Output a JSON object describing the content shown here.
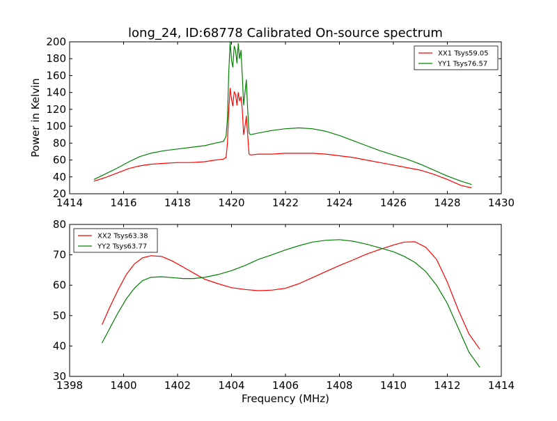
{
  "figure": {
    "title": "long_24, ID:68778 Calibrated On-source spectrum"
  },
  "chart_data": [
    {
      "type": "line",
      "title": "long_24, ID:68778 Calibrated On-source spectrum",
      "xlabel": "",
      "ylabel": "Power in Kelvin",
      "xlim": [
        1414,
        1430
      ],
      "ylim": [
        20,
        200
      ],
      "xticks": [
        1414,
        1416,
        1418,
        1420,
        1422,
        1424,
        1426,
        1428,
        1430
      ],
      "yticks": [
        20,
        40,
        60,
        80,
        100,
        120,
        140,
        160,
        180,
        200
      ],
      "grid": false,
      "legend_position": "top-right",
      "series": [
        {
          "name": "XX1 Tsys59.05",
          "color": "#ff0000",
          "x": [
            1414.9,
            1415.3,
            1415.8,
            1416.2,
            1416.6,
            1417.0,
            1417.5,
            1418.0,
            1418.5,
            1419.0,
            1419.4,
            1419.7,
            1419.8,
            1419.85,
            1419.9,
            1419.95,
            1420.0,
            1420.05,
            1420.1,
            1420.15,
            1420.2,
            1420.25,
            1420.3,
            1420.35,
            1420.4,
            1420.45,
            1420.5,
            1420.55,
            1420.6,
            1420.65,
            1420.7,
            1421.0,
            1421.5,
            1422.0,
            1422.5,
            1423.0,
            1423.5,
            1424.0,
            1424.5,
            1425.0,
            1425.5,
            1426.0,
            1426.5,
            1427.0,
            1427.5,
            1428.0,
            1428.5,
            1428.9
          ],
          "y": [
            35,
            39,
            45,
            50,
            53,
            55,
            56,
            57,
            57,
            58,
            60,
            61,
            63,
            80,
            120,
            145,
            132,
            124,
            141,
            138,
            125,
            140,
            130,
            135,
            120,
            90,
            100,
            112,
            90,
            67,
            66,
            67,
            67,
            68,
            68,
            68,
            67,
            65,
            63,
            60,
            57,
            54,
            51,
            48,
            43,
            37,
            30,
            27
          ]
        },
        {
          "name": "YY1 Tsys76.57",
          "color": "#008000",
          "x": [
            1414.9,
            1415.3,
            1415.8,
            1416.2,
            1416.6,
            1417.0,
            1417.5,
            1418.0,
            1418.5,
            1419.0,
            1419.4,
            1419.7,
            1419.8,
            1419.85,
            1419.9,
            1419.95,
            1420.0,
            1420.05,
            1420.1,
            1420.15,
            1420.2,
            1420.25,
            1420.3,
            1420.35,
            1420.4,
            1420.45,
            1420.5,
            1420.55,
            1420.6,
            1420.65,
            1420.7,
            1421.0,
            1421.5,
            1422.0,
            1422.5,
            1423.0,
            1423.5,
            1424.0,
            1424.5,
            1425.0,
            1425.5,
            1426.0,
            1426.5,
            1427.0,
            1427.5,
            1428.0,
            1428.5,
            1428.9
          ],
          "y": [
            37,
            43,
            51,
            58,
            64,
            68,
            71,
            73,
            75,
            77,
            80,
            82,
            88,
            110,
            165,
            200,
            178,
            170,
            195,
            190,
            175,
            198,
            180,
            190,
            160,
            125,
            140,
            155,
            120,
            92,
            90,
            92,
            95,
            97,
            98,
            97,
            94,
            89,
            83,
            77,
            71,
            66,
            61,
            55,
            48,
            41,
            35,
            31
          ]
        }
      ]
    },
    {
      "type": "line",
      "title": "",
      "xlabel": "Frequency (MHz)",
      "ylabel": "",
      "xlim": [
        1398,
        1414
      ],
      "ylim": [
        30,
        80
      ],
      "xticks": [
        1398,
        1400,
        1402,
        1404,
        1406,
        1408,
        1410,
        1412,
        1414
      ],
      "yticks": [
        30,
        40,
        50,
        60,
        70,
        80
      ],
      "grid": false,
      "legend_position": "top-left",
      "series": [
        {
          "name": "XX2 Tsys63.38",
          "color": "#ff0000",
          "x": [
            1399.2,
            1399.5,
            1399.8,
            1400.1,
            1400.4,
            1400.7,
            1401.0,
            1401.4,
            1401.8,
            1402.2,
            1402.6,
            1403.0,
            1403.5,
            1404.0,
            1404.5,
            1405.0,
            1405.5,
            1406.0,
            1406.5,
            1407.0,
            1407.5,
            1408.0,
            1408.5,
            1409.0,
            1409.5,
            1410.0,
            1410.4,
            1410.8,
            1411.2,
            1411.6,
            1412.0,
            1412.4,
            1412.8,
            1413.2
          ],
          "y": [
            47,
            53,
            58.5,
            63.5,
            67,
            69,
            69.7,
            69.5,
            68,
            66,
            64,
            62,
            60.5,
            59.2,
            58.6,
            58.2,
            58.4,
            59,
            60.5,
            62.5,
            64.5,
            66.5,
            68.3,
            70.2,
            71.8,
            73.2,
            74.2,
            74.3,
            72.5,
            68.5,
            61,
            52,
            44,
            39
          ]
        },
        {
          "name": "YY2 Tsys63.77",
          "color": "#008000",
          "x": [
            1399.2,
            1399.5,
            1399.8,
            1400.1,
            1400.4,
            1400.7,
            1401.0,
            1401.4,
            1401.8,
            1402.2,
            1402.6,
            1403.0,
            1403.5,
            1404.0,
            1404.5,
            1405.0,
            1405.5,
            1406.0,
            1406.5,
            1407.0,
            1407.5,
            1408.0,
            1408.5,
            1409.0,
            1409.5,
            1410.0,
            1410.4,
            1410.8,
            1411.2,
            1411.6,
            1412.0,
            1412.4,
            1412.8,
            1413.2
          ],
          "y": [
            41,
            46,
            51,
            55.5,
            59,
            61.5,
            62.6,
            62.8,
            62.5,
            62.2,
            62.2,
            62.6,
            63.5,
            64.8,
            66.5,
            68.5,
            70,
            71.6,
            73,
            74.2,
            74.8,
            75,
            74.5,
            73.5,
            72.3,
            71,
            69.5,
            67.5,
            64.5,
            60,
            54,
            46,
            38,
            33
          ]
        }
      ]
    }
  ]
}
